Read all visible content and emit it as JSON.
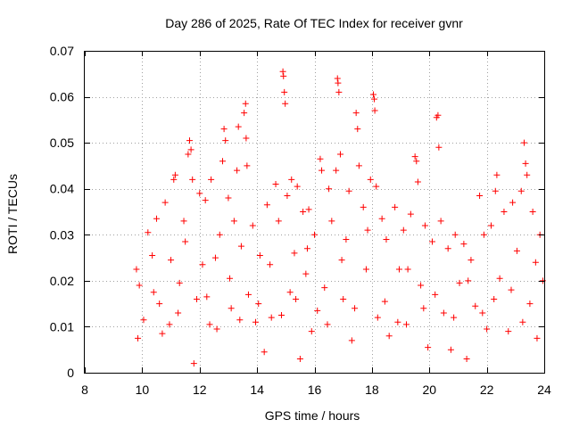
{
  "chart_data": {
    "type": "scatter",
    "title": "Day 286 of 2025, Rate Of TEC Index for receiver gvnr",
    "xlabel": "GPS time / hours",
    "ylabel": "ROTI / TECUs",
    "xlim": [
      8,
      24
    ],
    "ylim": [
      0,
      0.07
    ],
    "x_ticks": [
      8,
      10,
      12,
      14,
      16,
      18,
      20,
      22,
      24
    ],
    "y_ticks": [
      0,
      0.01,
      0.02,
      0.03,
      0.04,
      0.05,
      0.06,
      0.07
    ],
    "x_tick_labels": [
      "8",
      "10",
      "12",
      "14",
      "16",
      "18",
      "20",
      "22",
      "24"
    ],
    "y_tick_labels": [
      "0",
      "0.01",
      "0.02",
      "0.03",
      "0.04",
      "0.05",
      "0.06",
      "0.07"
    ],
    "grid": true,
    "marker": "+",
    "marker_color": "#ff0000",
    "grid_color": "#a0a0a0",
    "series": [
      {
        "name": "ROTI",
        "points": [
          [
            9.8,
            0.0225
          ],
          [
            9.85,
            0.0075
          ],
          [
            9.9,
            0.019
          ],
          [
            10.05,
            0.0115
          ],
          [
            10.2,
            0.0305
          ],
          [
            10.35,
            0.0255
          ],
          [
            10.5,
            0.0335
          ],
          [
            10.6,
            0.015
          ],
          [
            10.8,
            0.037
          ],
          [
            10.95,
            0.0105
          ],
          [
            11.1,
            0.042
          ],
          [
            11.15,
            0.043
          ],
          [
            11.3,
            0.0195
          ],
          [
            11.45,
            0.033
          ],
          [
            11.6,
            0.0475
          ],
          [
            11.65,
            0.0505
          ],
          [
            11.7,
            0.0485
          ],
          [
            11.75,
            0.042
          ],
          [
            11.8,
            0.002
          ],
          [
            11.9,
            0.016
          ],
          [
            12.0,
            0.039
          ],
          [
            12.1,
            0.0235
          ],
          [
            12.2,
            0.0375
          ],
          [
            12.35,
            0.0105
          ],
          [
            12.4,
            0.042
          ],
          [
            12.55,
            0.025
          ],
          [
            12.7,
            0.03
          ],
          [
            12.8,
            0.046
          ],
          [
            12.85,
            0.053
          ],
          [
            12.9,
            0.0505
          ],
          [
            13.0,
            0.038
          ],
          [
            13.1,
            0.014
          ],
          [
            13.2,
            0.033
          ],
          [
            13.3,
            0.044
          ],
          [
            13.35,
            0.0535
          ],
          [
            13.45,
            0.0275
          ],
          [
            13.55,
            0.0565
          ],
          [
            13.6,
            0.0585
          ],
          [
            13.62,
            0.051
          ],
          [
            13.65,
            0.045
          ],
          [
            13.7,
            0.017
          ],
          [
            13.85,
            0.032
          ],
          [
            13.95,
            0.011
          ],
          [
            14.1,
            0.0255
          ],
          [
            14.25,
            0.0045
          ],
          [
            14.35,
            0.0365
          ],
          [
            14.5,
            0.012
          ],
          [
            14.65,
            0.041
          ],
          [
            14.75,
            0.033
          ],
          [
            14.9,
            0.0655
          ],
          [
            14.92,
            0.0645
          ],
          [
            14.95,
            0.061
          ],
          [
            14.98,
            0.0585
          ],
          [
            15.05,
            0.0385
          ],
          [
            15.15,
            0.0175
          ],
          [
            15.2,
            0.042
          ],
          [
            15.3,
            0.026
          ],
          [
            15.4,
            0.0405
          ],
          [
            15.5,
            0.003
          ],
          [
            15.6,
            0.035
          ],
          [
            15.7,
            0.0215
          ],
          [
            15.8,
            0.0355
          ],
          [
            15.9,
            0.009
          ],
          [
            16.0,
            0.03
          ],
          [
            16.2,
            0.0465
          ],
          [
            16.25,
            0.044
          ],
          [
            16.35,
            0.0185
          ],
          [
            16.5,
            0.04
          ],
          [
            16.6,
            0.033
          ],
          [
            16.75,
            0.044
          ],
          [
            16.8,
            0.064
          ],
          [
            16.82,
            0.063
          ],
          [
            16.85,
            0.061
          ],
          [
            16.9,
            0.0475
          ],
          [
            17.0,
            0.016
          ],
          [
            17.1,
            0.029
          ],
          [
            17.2,
            0.0395
          ],
          [
            17.3,
            0.007
          ],
          [
            17.45,
            0.0565
          ],
          [
            17.5,
            0.053
          ],
          [
            17.55,
            0.045
          ],
          [
            17.7,
            0.036
          ],
          [
            17.8,
            0.0225
          ],
          [
            17.95,
            0.042
          ],
          [
            18.05,
            0.0605
          ],
          [
            18.08,
            0.0595
          ],
          [
            18.1,
            0.057
          ],
          [
            18.15,
            0.0405
          ],
          [
            18.2,
            0.012
          ],
          [
            18.35,
            0.0335
          ],
          [
            18.5,
            0.029
          ],
          [
            18.6,
            0.008
          ],
          [
            18.8,
            0.036
          ],
          [
            18.95,
            0.0225
          ],
          [
            19.1,
            0.031
          ],
          [
            19.2,
            0.0105
          ],
          [
            19.35,
            0.0345
          ],
          [
            19.5,
            0.047
          ],
          [
            19.55,
            0.046
          ],
          [
            19.6,
            0.0415
          ],
          [
            19.7,
            0.019
          ],
          [
            19.85,
            0.032
          ],
          [
            19.95,
            0.0055
          ],
          [
            20.1,
            0.0285
          ],
          [
            20.25,
            0.0555
          ],
          [
            20.3,
            0.056
          ],
          [
            20.33,
            0.049
          ],
          [
            20.4,
            0.033
          ],
          [
            20.5,
            0.013
          ],
          [
            20.65,
            0.027
          ],
          [
            20.75,
            0.005
          ],
          [
            20.9,
            0.03
          ],
          [
            21.05,
            0.0195
          ],
          [
            21.2,
            0.028
          ],
          [
            21.3,
            0.003
          ],
          [
            21.45,
            0.0245
          ],
          [
            21.6,
            0.0145
          ],
          [
            21.75,
            0.0385
          ],
          [
            21.9,
            0.03
          ],
          [
            22.0,
            0.0095
          ],
          [
            22.15,
            0.032
          ],
          [
            22.3,
            0.0395
          ],
          [
            22.35,
            0.043
          ],
          [
            22.45,
            0.0205
          ],
          [
            22.6,
            0.035
          ],
          [
            22.75,
            0.009
          ],
          [
            22.9,
            0.037
          ],
          [
            23.05,
            0.0265
          ],
          [
            23.2,
            0.0395
          ],
          [
            23.3,
            0.05
          ],
          [
            23.35,
            0.0455
          ],
          [
            23.4,
            0.043
          ],
          [
            23.5,
            0.015
          ],
          [
            23.6,
            0.035
          ],
          [
            23.75,
            0.0075
          ],
          [
            23.85,
            0.03
          ],
          [
            23.95,
            0.02
          ],
          [
            10.4,
            0.0175
          ],
          [
            10.7,
            0.0085
          ],
          [
            11.0,
            0.0245
          ],
          [
            11.25,
            0.013
          ],
          [
            11.5,
            0.0285
          ],
          [
            12.25,
            0.0165
          ],
          [
            12.6,
            0.0095
          ],
          [
            13.05,
            0.0205
          ],
          [
            13.4,
            0.0115
          ],
          [
            14.05,
            0.015
          ],
          [
            14.45,
            0.0235
          ],
          [
            14.85,
            0.0125
          ],
          [
            15.35,
            0.016
          ],
          [
            15.75,
            0.027
          ],
          [
            16.1,
            0.0135
          ],
          [
            16.45,
            0.0105
          ],
          [
            16.95,
            0.0245
          ],
          [
            17.4,
            0.014
          ],
          [
            17.85,
            0.031
          ],
          [
            18.45,
            0.0155
          ],
          [
            18.9,
            0.011
          ],
          [
            19.25,
            0.0225
          ],
          [
            19.8,
            0.014
          ],
          [
            20.2,
            0.017
          ],
          [
            20.85,
            0.012
          ],
          [
            21.35,
            0.02
          ],
          [
            21.85,
            0.013
          ],
          [
            22.25,
            0.016
          ],
          [
            22.85,
            0.018
          ],
          [
            23.25,
            0.011
          ],
          [
            23.7,
            0.024
          ]
        ]
      }
    ]
  }
}
